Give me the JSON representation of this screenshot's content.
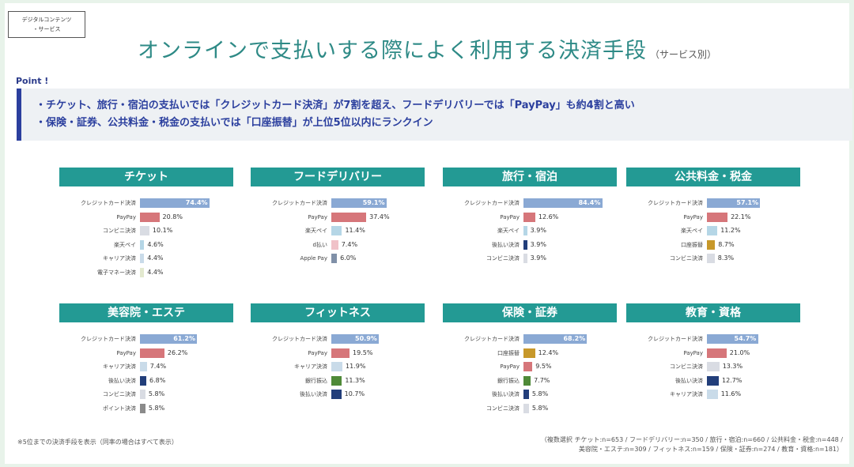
{
  "badge": {
    "line1": "デジタルコンテンツ",
    "line2": "・サービス"
  },
  "title": {
    "main": "オンラインで支払いする際によく利用する決済手段",
    "sub": "（サービス別）"
  },
  "point": {
    "label": "Point !",
    "lines": [
      "・チケット、旅行・宿泊の支払いでは「クレジットカード決済」が7割を超え、フードデリバリーでは「PayPay」も約4割と高い",
      "・保険・証券、公共料金・税金の支払いでは「口座振替」が上位5位以内にランクイン"
    ]
  },
  "colors": {
    "クレジットカード決済": "#8aa9d4",
    "PayPay": "#d6767a",
    "コンビニ決済": "#d9dce3",
    "楽天ペイ": "#b5d6e6",
    "キャリア決済": "#c9dbe9",
    "電子マネー決済": "#e3e9cf",
    "d払い": "#f0c2c8",
    "Apple Pay": "#8090a8",
    "後払い決済": "#223e7a",
    "口座振替": "#c7982a",
    "ポイント決済": "#8a8a8a",
    "銀行振込": "#4f8a38",
    "header": "#239a94"
  },
  "chart_data": [
    {
      "type": "bar",
      "title": "チケット",
      "categories": [
        "クレジットカード決済",
        "PayPay",
        "コンビニ決済",
        "楽天ペイ",
        "キャリア決済",
        "電子マネー決済"
      ],
      "values": [
        74.4,
        20.8,
        10.1,
        4.6,
        4.4,
        4.4
      ],
      "labels": [
        "74.4%",
        "20.8%",
        "10.1%",
        "4.6%",
        "4.4%",
        "4.4%"
      ]
    },
    {
      "type": "bar",
      "title": "フードデリバリー",
      "categories": [
        "クレジットカード決済",
        "PayPay",
        "楽天ペイ",
        "d払い",
        "Apple Pay"
      ],
      "values": [
        59.1,
        37.4,
        11.4,
        7.4,
        6.0
      ],
      "labels": [
        "59.1%",
        "37.4%",
        "11.4%",
        "7.4%",
        "6.0%"
      ]
    },
    {
      "type": "bar",
      "title": "旅行・宿泊",
      "categories": [
        "クレジットカード決済",
        "PayPay",
        "楽天ペイ",
        "後払い決済",
        "コンビニ決済"
      ],
      "values": [
        84.4,
        12.6,
        3.9,
        3.9,
        3.9
      ],
      "labels": [
        "84.4%",
        "12.6%",
        "3.9%",
        "3.9%",
        "3.9%"
      ]
    },
    {
      "type": "bar",
      "title": "公共料金・税金",
      "categories": [
        "クレジットカード決済",
        "PayPay",
        "楽天ペイ",
        "口座振替",
        "コンビニ決済"
      ],
      "values": [
        57.1,
        22.1,
        11.2,
        8.7,
        8.3
      ],
      "labels": [
        "57.1%",
        "22.1%",
        "11.2%",
        "8.7%",
        "8.3%"
      ]
    },
    {
      "type": "bar",
      "title": "美容院・エステ",
      "categories": [
        "クレジットカード決済",
        "PayPay",
        "キャリア決済",
        "後払い決済",
        "コンビニ決済",
        "ポイント決済"
      ],
      "values": [
        61.2,
        26.2,
        7.4,
        6.8,
        5.8,
        5.8
      ],
      "labels": [
        "61.2%",
        "26.2%",
        "7.4%",
        "6.8%",
        "5.8%",
        "5.8%"
      ]
    },
    {
      "type": "bar",
      "title": "フィットネス",
      "categories": [
        "クレジットカード決済",
        "PayPay",
        "キャリア決済",
        "銀行振込",
        "後払い決済"
      ],
      "values": [
        50.9,
        19.5,
        11.9,
        11.3,
        10.7
      ],
      "labels": [
        "50.9%",
        "19.5%",
        "11.9%",
        "11.3%",
        "10.7%"
      ]
    },
    {
      "type": "bar",
      "title": "保険・証券",
      "categories": [
        "クレジットカード決済",
        "口座振替",
        "PayPay",
        "銀行振込",
        "後払い決済",
        "コンビニ決済"
      ],
      "values": [
        68.2,
        12.4,
        9.5,
        7.7,
        5.8,
        5.8
      ],
      "labels": [
        "68.2%",
        "12.4%",
        "9.5%",
        "7.7%",
        "5.8%",
        "5.8%"
      ]
    },
    {
      "type": "bar",
      "title": "教育・資格",
      "categories": [
        "クレジットカード決済",
        "PayPay",
        "コンビニ決済",
        "後払い決済",
        "キャリア決済"
      ],
      "values": [
        54.7,
        21.0,
        13.3,
        12.7,
        11.6
      ],
      "labels": [
        "54.7%",
        "21.0%",
        "13.3%",
        "12.7%",
        "11.6%"
      ]
    }
  ],
  "notes": {
    "left": "※5位までの決済手段を表示（同率の場合はすべて表示）",
    "right_line1": "（複数選択 チケット:n=653 / フードデリバリー:n=350 / 旅行・宿泊:n=660 / 公共料金・税金:n=448 /",
    "right_line2": "美容院・エステ:n=309 / フィットネス:n=159 / 保険・証券:n=274 / 教育・資格:n=181）"
  }
}
